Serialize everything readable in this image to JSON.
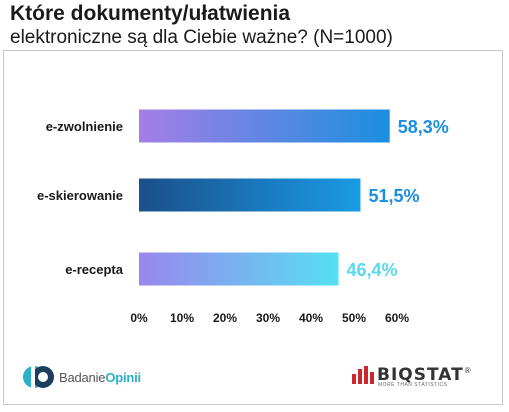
{
  "title": {
    "line1": "Które dokumenty/ułatwienia",
    "line2": "elektroniczne są dla Ciebie ważne? (N=1000)"
  },
  "chart_data": {
    "type": "bar",
    "orientation": "horizontal",
    "categories": [
      "e-zwolnienie",
      "e-skierowanie",
      "e-recepta"
    ],
    "values": [
      58.3,
      51.5,
      46.4
    ],
    "value_labels": [
      "58,3%",
      "51,5%",
      "46,4%"
    ],
    "xlim": [
      0,
      60
    ],
    "xticks": [
      0,
      10,
      20,
      30,
      40,
      50,
      60
    ],
    "xtick_labels": [
      "0%",
      "10%",
      "20%",
      "30%",
      "40%",
      "50%",
      "60%"
    ],
    "grid": false,
    "bar_gradients": [
      [
        "#a57ee6",
        "#1a8fe0"
      ],
      [
        "#1a4f8a",
        "#1a9be6"
      ],
      [
        "#9a86ee",
        "#55e0f2"
      ]
    ],
    "label_colors": [
      "#1a8fe0",
      "#1a8fe0",
      "#5ad8ee"
    ]
  },
  "logos": {
    "left_prefix": "Badanie",
    "left_brand": "Opinii",
    "right_name": "BIQSTAT",
    "right_reg": "®",
    "right_tagline": "MORE THAN STATISTICS"
  }
}
